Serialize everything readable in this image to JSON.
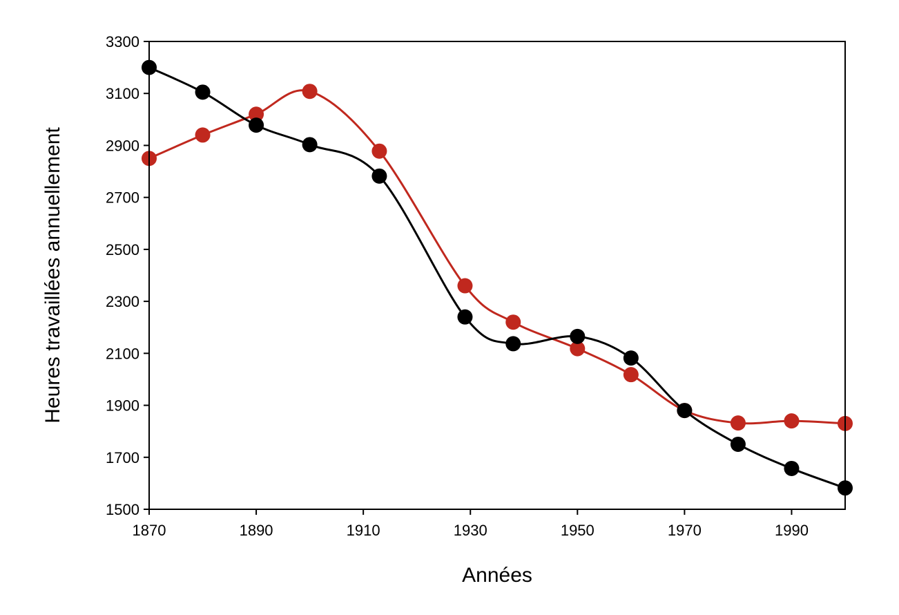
{
  "chart_data": {
    "type": "line",
    "title": "",
    "xlabel": "Années",
    "ylabel": "Heures travaillées annuellement",
    "xlim": [
      1870,
      2000
    ],
    "ylim": [
      1500,
      3300
    ],
    "x_ticks": [
      1870,
      1890,
      1910,
      1930,
      1950,
      1970,
      1990
    ],
    "y_ticks": [
      1500,
      1700,
      1900,
      2100,
      2300,
      2500,
      2700,
      2900,
      3100,
      3300
    ],
    "grid": false,
    "legend": "none",
    "series": [
      {
        "color": "#c0281e",
        "points": [
          [
            1870,
            2850
          ],
          [
            1880,
            2940
          ],
          [
            1890,
            3020
          ],
          [
            1900,
            3108
          ],
          [
            1913,
            2878
          ],
          [
            1929,
            2360
          ],
          [
            1938,
            2220
          ],
          [
            1950,
            2118
          ],
          [
            1960,
            2018
          ],
          [
            1970,
            1880
          ],
          [
            1980,
            1832
          ],
          [
            1990,
            1840
          ],
          [
            2000,
            1830
          ]
        ]
      },
      {
        "color": "#000000",
        "points": [
          [
            1870,
            3200
          ],
          [
            1880,
            3105
          ],
          [
            1890,
            2978
          ],
          [
            1900,
            2903
          ],
          [
            1913,
            2782
          ],
          [
            1929,
            2240
          ],
          [
            1938,
            2137
          ],
          [
            1950,
            2165
          ],
          [
            1960,
            2082
          ],
          [
            1970,
            1880
          ],
          [
            1980,
            1750
          ],
          [
            1990,
            1657
          ],
          [
            2000,
            1582
          ]
        ]
      }
    ]
  }
}
